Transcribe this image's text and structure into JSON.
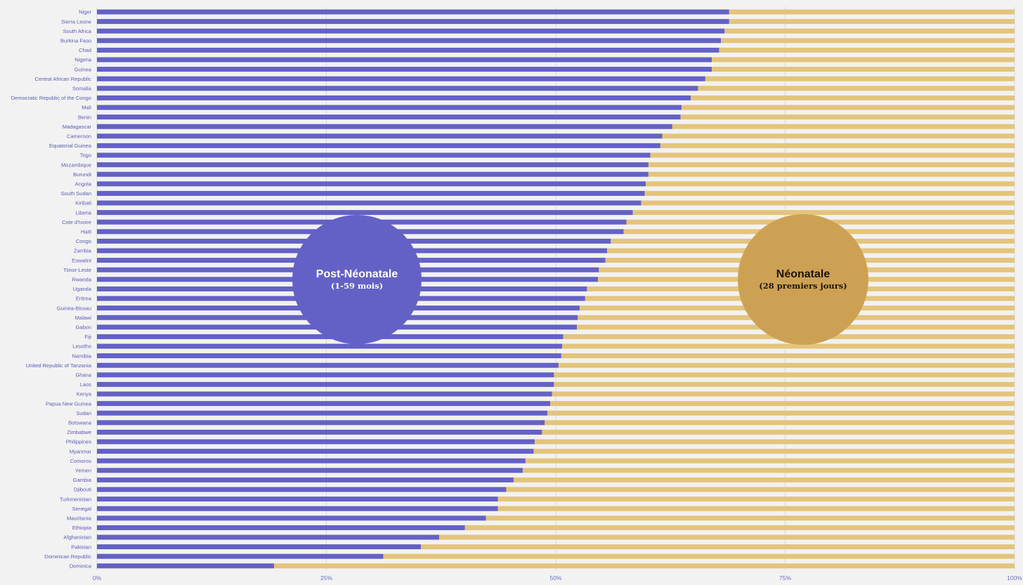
{
  "colors": {
    "post_neonatal": "#6461c6",
    "neonatal": "#e4c47c",
    "post_neonatal_bubble": "#6461c6",
    "neonatal_bubble": "#cda153",
    "background": "#f2f2f2"
  },
  "annotations": {
    "post_neonatal": {
      "title": "Post-Néonatale",
      "subtitle": "(1-59 mois)"
    },
    "neonatal": {
      "title": "Néonatale",
      "subtitle": "(28 premiers jours)"
    }
  },
  "chart_data": {
    "type": "bar",
    "orientation": "horizontal",
    "stacked": true,
    "percent_stacked": true,
    "xlim": [
      0,
      100
    ],
    "x_ticks": [
      "0%",
      "25%",
      "50%",
      "75%",
      "100%"
    ],
    "grid": "vertical",
    "categories": [
      "Niger",
      "Sierra Leone",
      "South Africa",
      "Burkina Faso",
      "Chad",
      "Nigeria",
      "Guinea",
      "Central African Republic",
      "Somalia",
      "Democratic Republic of the Congo",
      "Mali",
      "Benin",
      "Madagascar",
      "Cameroon",
      "Equatorial Guinea",
      "Togo",
      "Mozambique",
      "Burundi",
      "Angola",
      "South Sudan",
      "Kiribati",
      "Liberia",
      "Cote d'Ivoire",
      "Haiti",
      "Congo",
      "Zambia",
      "Eswatini",
      "Timor-Leste",
      "Rwanda",
      "Uganda",
      "Eritrea",
      "Guinea-Bissau",
      "Malawi",
      "Gabon",
      "Fiji",
      "Lesotho",
      "Namibia",
      "United Republic of Tanzania",
      "Ghana",
      "Laos",
      "Kenya",
      "Papua New Guinea",
      "Sudan",
      "Botswana",
      "Zimbabwe",
      "Philippines",
      "Myanmar",
      "Comoros",
      "Yemen",
      "Gambia",
      "Djibouti",
      "Turkmenistan",
      "Senegal",
      "Mauritania",
      "Ethiopia",
      "Afghanistan",
      "Pakistan",
      "Dominican Republic",
      "Dominica"
    ],
    "series": [
      {
        "key": "post_neonatal",
        "values": [
          68.9,
          68.9,
          68.4,
          68.0,
          67.8,
          67.0,
          67.0,
          66.3,
          65.5,
          64.7,
          63.7,
          63.6,
          62.7,
          61.6,
          61.4,
          60.3,
          60.1,
          60.1,
          59.8,
          59.7,
          59.3,
          58.4,
          57.7,
          57.4,
          56.0,
          55.6,
          55.4,
          54.7,
          54.6,
          53.4,
          53.2,
          52.6,
          52.4,
          52.3,
          50.8,
          50.7,
          50.6,
          50.3,
          49.8,
          49.8,
          49.6,
          49.4,
          49.1,
          48.8,
          48.5,
          47.7,
          47.6,
          46.7,
          46.4,
          45.4,
          44.6,
          43.7,
          43.7,
          42.4,
          40.1,
          37.3,
          35.3,
          31.2,
          19.3
        ]
      },
      {
        "key": "neonatal",
        "values": [
          31.1,
          31.1,
          31.6,
          32.0,
          32.2,
          33.0,
          33.0,
          33.7,
          34.5,
          35.3,
          36.3,
          36.4,
          37.3,
          38.4,
          38.6,
          39.7,
          39.9,
          39.9,
          40.2,
          40.3,
          40.7,
          41.6,
          42.3,
          42.6,
          44.0,
          44.4,
          44.6,
          45.3,
          45.4,
          46.6,
          46.8,
          47.4,
          47.6,
          47.7,
          49.2,
          49.3,
          49.4,
          49.7,
          50.2,
          50.2,
          50.4,
          50.6,
          50.9,
          51.2,
          51.5,
          52.3,
          52.4,
          53.3,
          53.6,
          54.6,
          55.4,
          56.3,
          56.3,
          57.6,
          59.9,
          62.7,
          64.7,
          68.8,
          80.7
        ]
      }
    ]
  }
}
